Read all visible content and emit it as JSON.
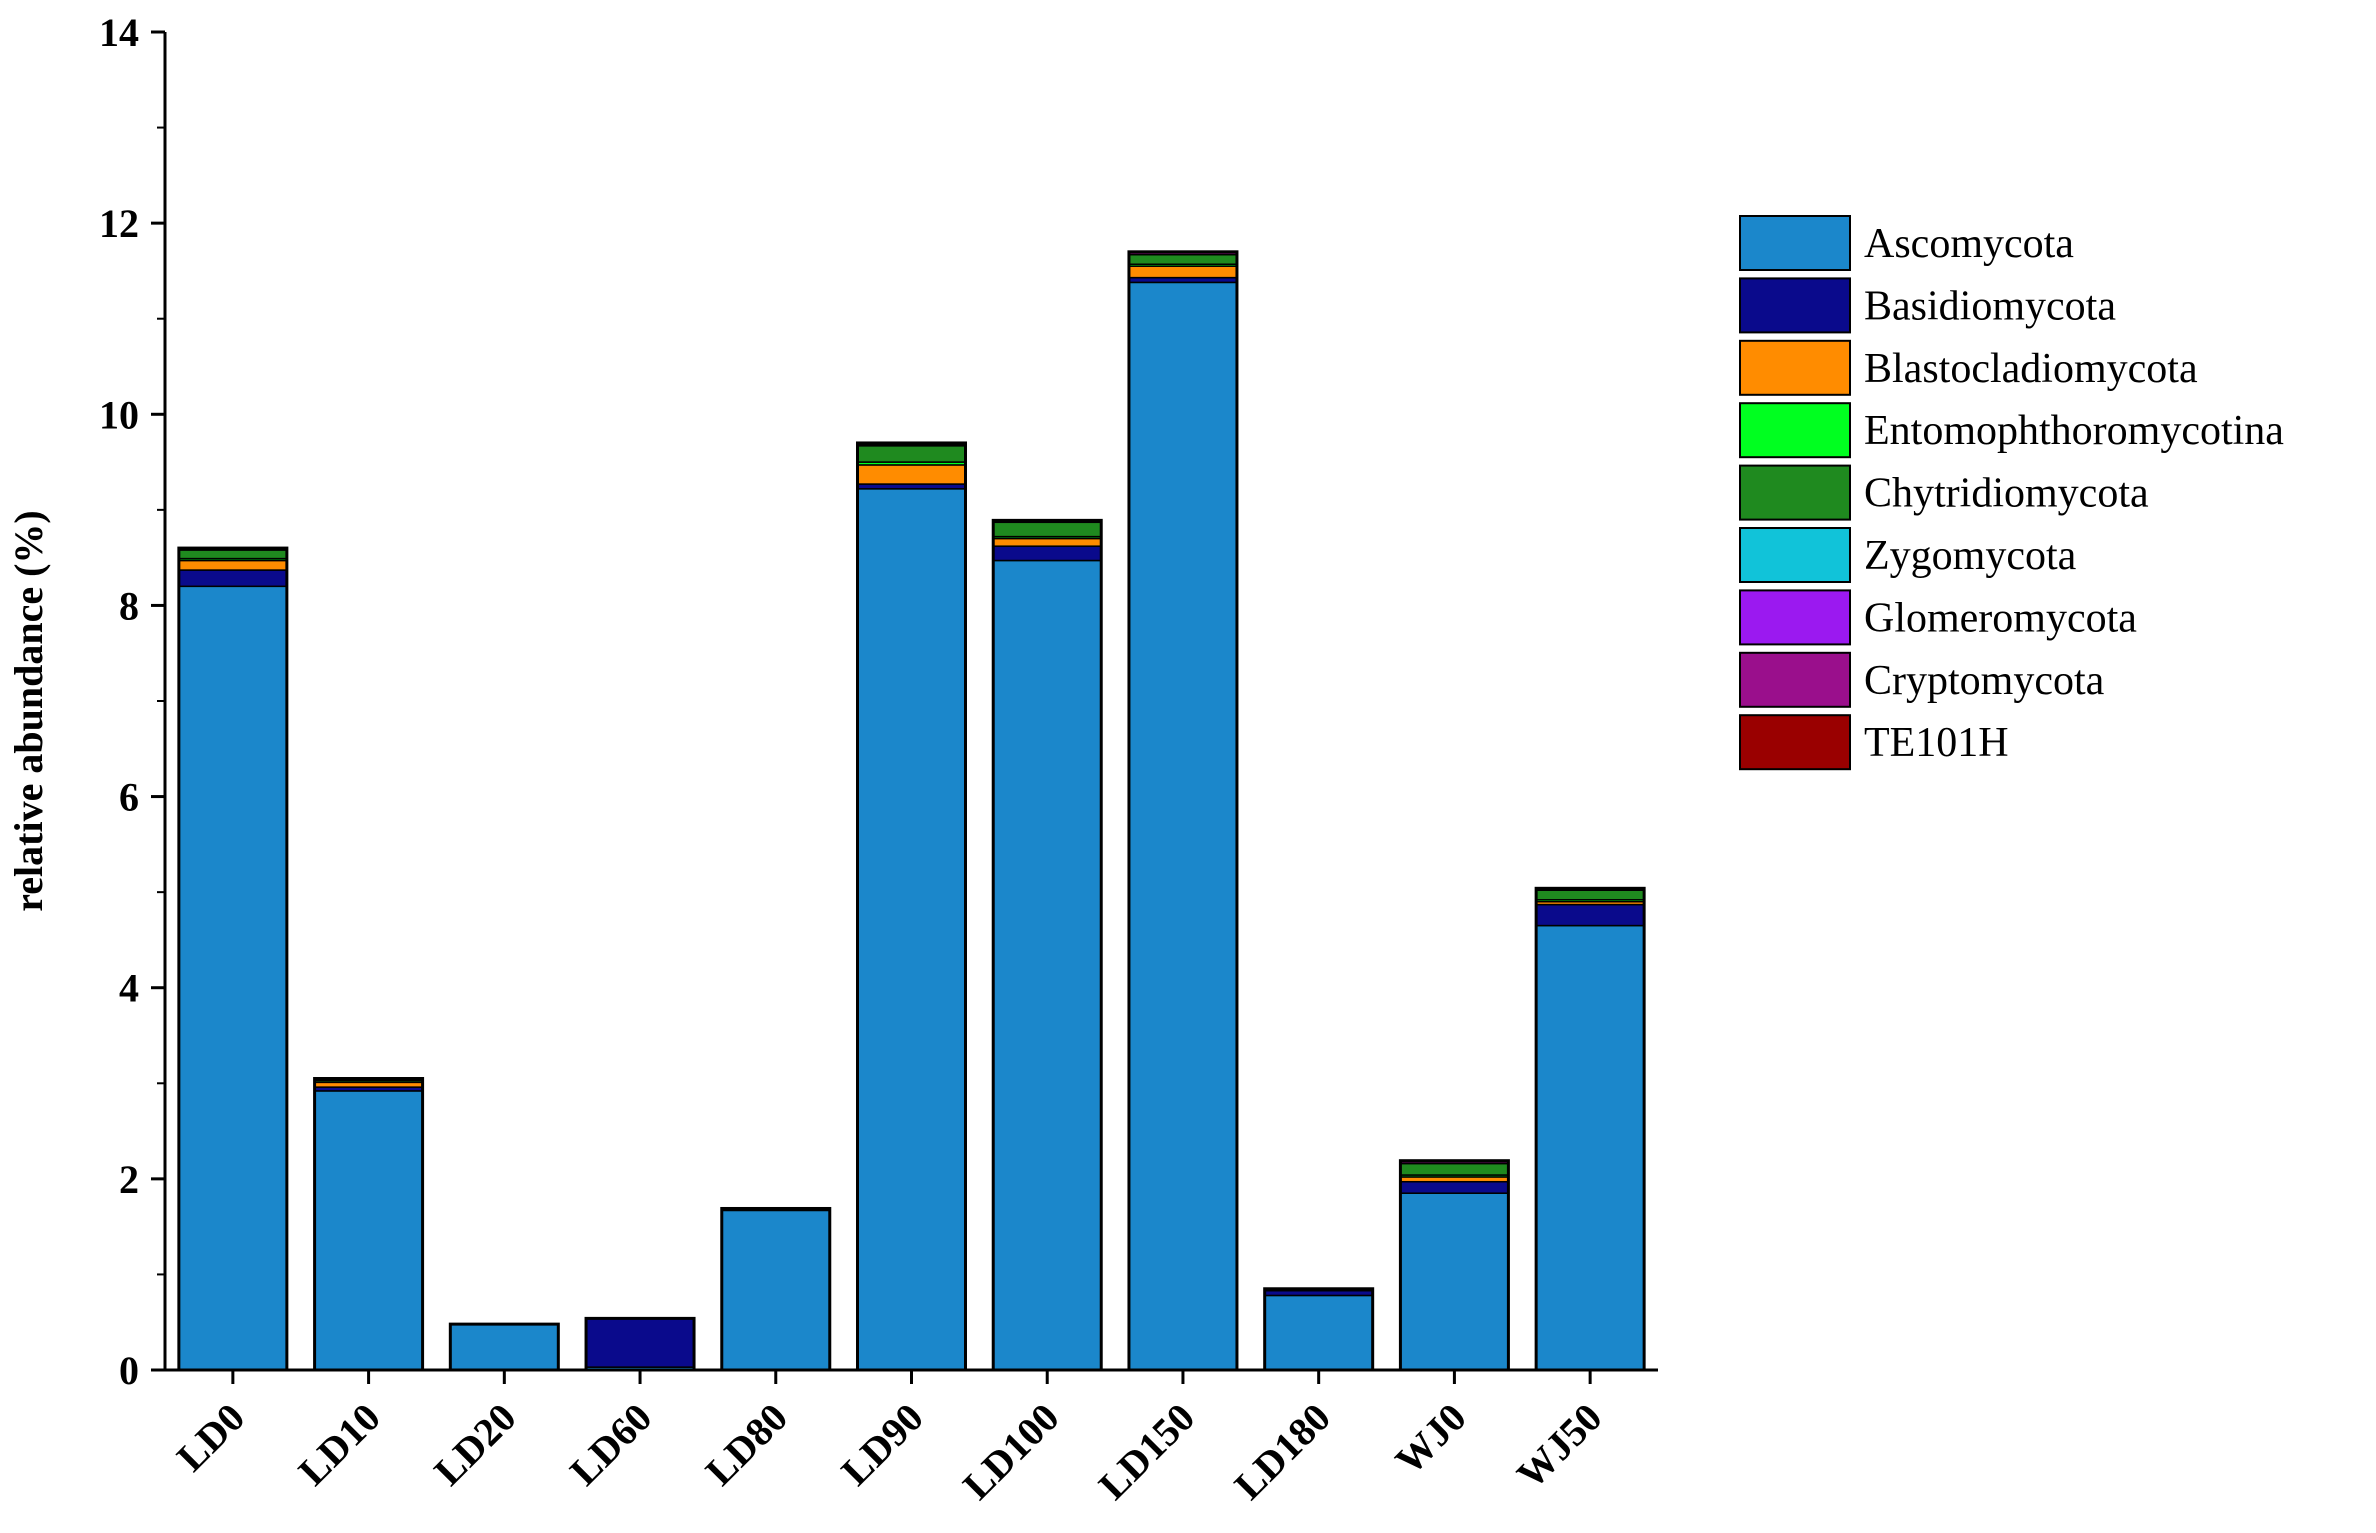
{
  "chart_data": {
    "type": "bar",
    "stacked": true,
    "title": "",
    "xlabel": "",
    "ylabel": "relative abundance (%)",
    "ylim": [
      0,
      14
    ],
    "yticks": [
      0,
      2,
      4,
      6,
      8,
      10,
      12,
      14
    ],
    "legend_position": "right",
    "categories": [
      "LD0",
      "LD10",
      "LD20",
      "LD60",
      "LD80",
      "LD90",
      "LD100",
      "LD150",
      "LD180",
      "WJ0",
      "WJ50"
    ],
    "series": [
      {
        "name": "Ascomycota",
        "color": "#1B87CB",
        "values": [
          8.2,
          2.92,
          0.48,
          0.03,
          1.67,
          9.22,
          8.47,
          11.38,
          0.78,
          1.85,
          4.65
        ]
      },
      {
        "name": "Basidiomycota",
        "color": "#0A0A8C",
        "values": [
          0.17,
          0.04,
          0.0,
          0.51,
          0.0,
          0.05,
          0.15,
          0.05,
          0.05,
          0.12,
          0.22
        ]
      },
      {
        "name": "Blastocladiomycota",
        "color": "#FF8C00",
        "values": [
          0.1,
          0.05,
          0.0,
          0.0,
          0.01,
          0.2,
          0.08,
          0.12,
          0.0,
          0.05,
          0.03
        ]
      },
      {
        "name": "Entomophthoromycotina",
        "color": "#00FF20",
        "values": [
          0.02,
          0.0,
          0.0,
          0.0,
          0.0,
          0.03,
          0.02,
          0.02,
          0.0,
          0.02,
          0.02
        ]
      },
      {
        "name": "Chytridiomycota",
        "color": "#1F8A1F",
        "values": [
          0.09,
          0.02,
          0.0,
          0.0,
          0.01,
          0.17,
          0.15,
          0.1,
          0.02,
          0.12,
          0.1
        ]
      },
      {
        "name": "Zygomycota",
        "color": "#11C3D9",
        "values": [
          0.0,
          0.0,
          0.0,
          0.0,
          0.0,
          0.01,
          0.0,
          0.0,
          0.0,
          0.0,
          0.0
        ]
      },
      {
        "name": "Glomeromycota",
        "color": "#9B19F0",
        "values": [
          0.0,
          0.0,
          0.0,
          0.0,
          0.0,
          0.0,
          0.0,
          0.0,
          0.0,
          0.0,
          0.0
        ]
      },
      {
        "name": "Cryptomycota",
        "color": "#9A0F8C",
        "values": [
          0.01,
          0.01,
          0.0,
          0.0,
          0.0,
          0.01,
          0.01,
          0.02,
          0.0,
          0.02,
          0.01
        ]
      },
      {
        "name": "TE101H",
        "color": "#9A0000",
        "values": [
          0.01,
          0.01,
          0.0,
          0.0,
          0.0,
          0.01,
          0.01,
          0.01,
          0.0,
          0.01,
          0.01
        ]
      }
    ]
  }
}
